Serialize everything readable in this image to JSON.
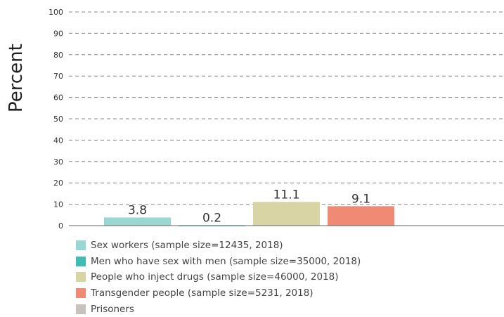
{
  "chart_data": {
    "type": "bar",
    "title": "",
    "ylabel": "Percent",
    "xlabel": "",
    "ylim": [
      0,
      100
    ],
    "yticks": [
      0,
      10,
      20,
      30,
      40,
      50,
      60,
      70,
      80,
      90,
      100
    ],
    "grid": "horizontal dashed",
    "legend_position": "bottom",
    "series": [
      {
        "name": "Sex workers (sample size=12435, 2018)",
        "value": 3.8,
        "label": "3.8",
        "color": "#98d7d2"
      },
      {
        "name": "Men who have sex with men (sample size=35000, 2018)",
        "value": 0.2,
        "label": "0.2",
        "color": "#3fbcb3"
      },
      {
        "name": "People who inject drugs (sample size=46000, 2018)",
        "value": 11.1,
        "label": "11.1",
        "color": "#d9d4a4"
      },
      {
        "name": "Transgender people (sample size=5231, 2018)",
        "value": 9.1,
        "label": "9.1",
        "color": "#f08a75"
      },
      {
        "name": "Prisoners",
        "value": null,
        "label": "",
        "color": "#c8c2bc"
      }
    ]
  }
}
